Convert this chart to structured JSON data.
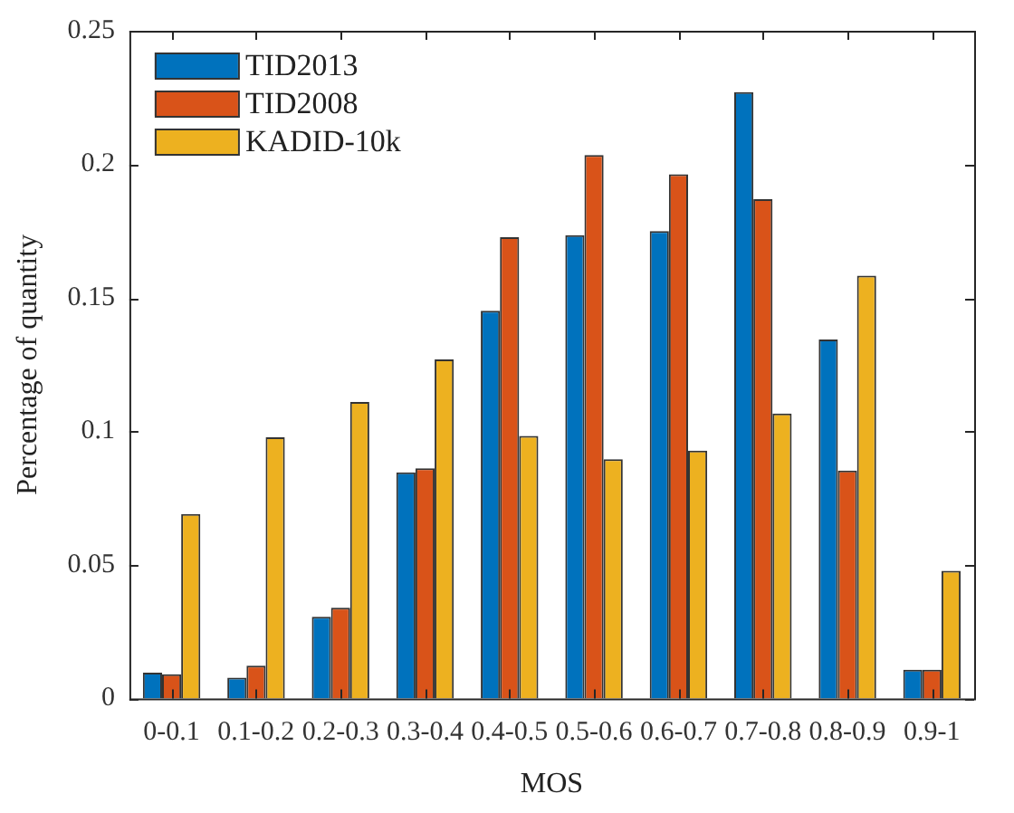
{
  "chart_data": {
    "type": "bar",
    "xlabel": "MOS",
    "ylabel": "Percentage of quantity",
    "categories": [
      "0-0.1",
      "0.1-0.2",
      "0.2-0.3",
      "0.3-0.4",
      "0.4-0.5",
      "0.5-0.6",
      "0.6-0.7",
      "0.7-0.8",
      "0.8-0.9",
      "0.9-1"
    ],
    "series": [
      {
        "name": "TID2013",
        "color": "#0072bd",
        "values": [
          0.0097,
          0.0078,
          0.0306,
          0.0847,
          0.1452,
          0.1735,
          0.175,
          0.227,
          0.1344,
          0.0108
        ]
      },
      {
        "name": "TID2008",
        "color": "#d95319",
        "values": [
          0.0091,
          0.0123,
          0.034,
          0.0862,
          0.1727,
          0.2035,
          0.1963,
          0.187,
          0.0854,
          0.0108
        ]
      },
      {
        "name": "KADID-10k",
        "color": "#edb120",
        "values": [
          0.0691,
          0.0978,
          0.111,
          0.127,
          0.0983,
          0.0896,
          0.0928,
          0.1067,
          0.1583,
          0.0478
        ]
      }
    ],
    "ylim": [
      0,
      0.25
    ],
    "yticks": [
      0,
      0.05,
      0.1,
      0.15,
      0.2,
      0.25
    ],
    "grid": false,
    "legend": "top left"
  }
}
